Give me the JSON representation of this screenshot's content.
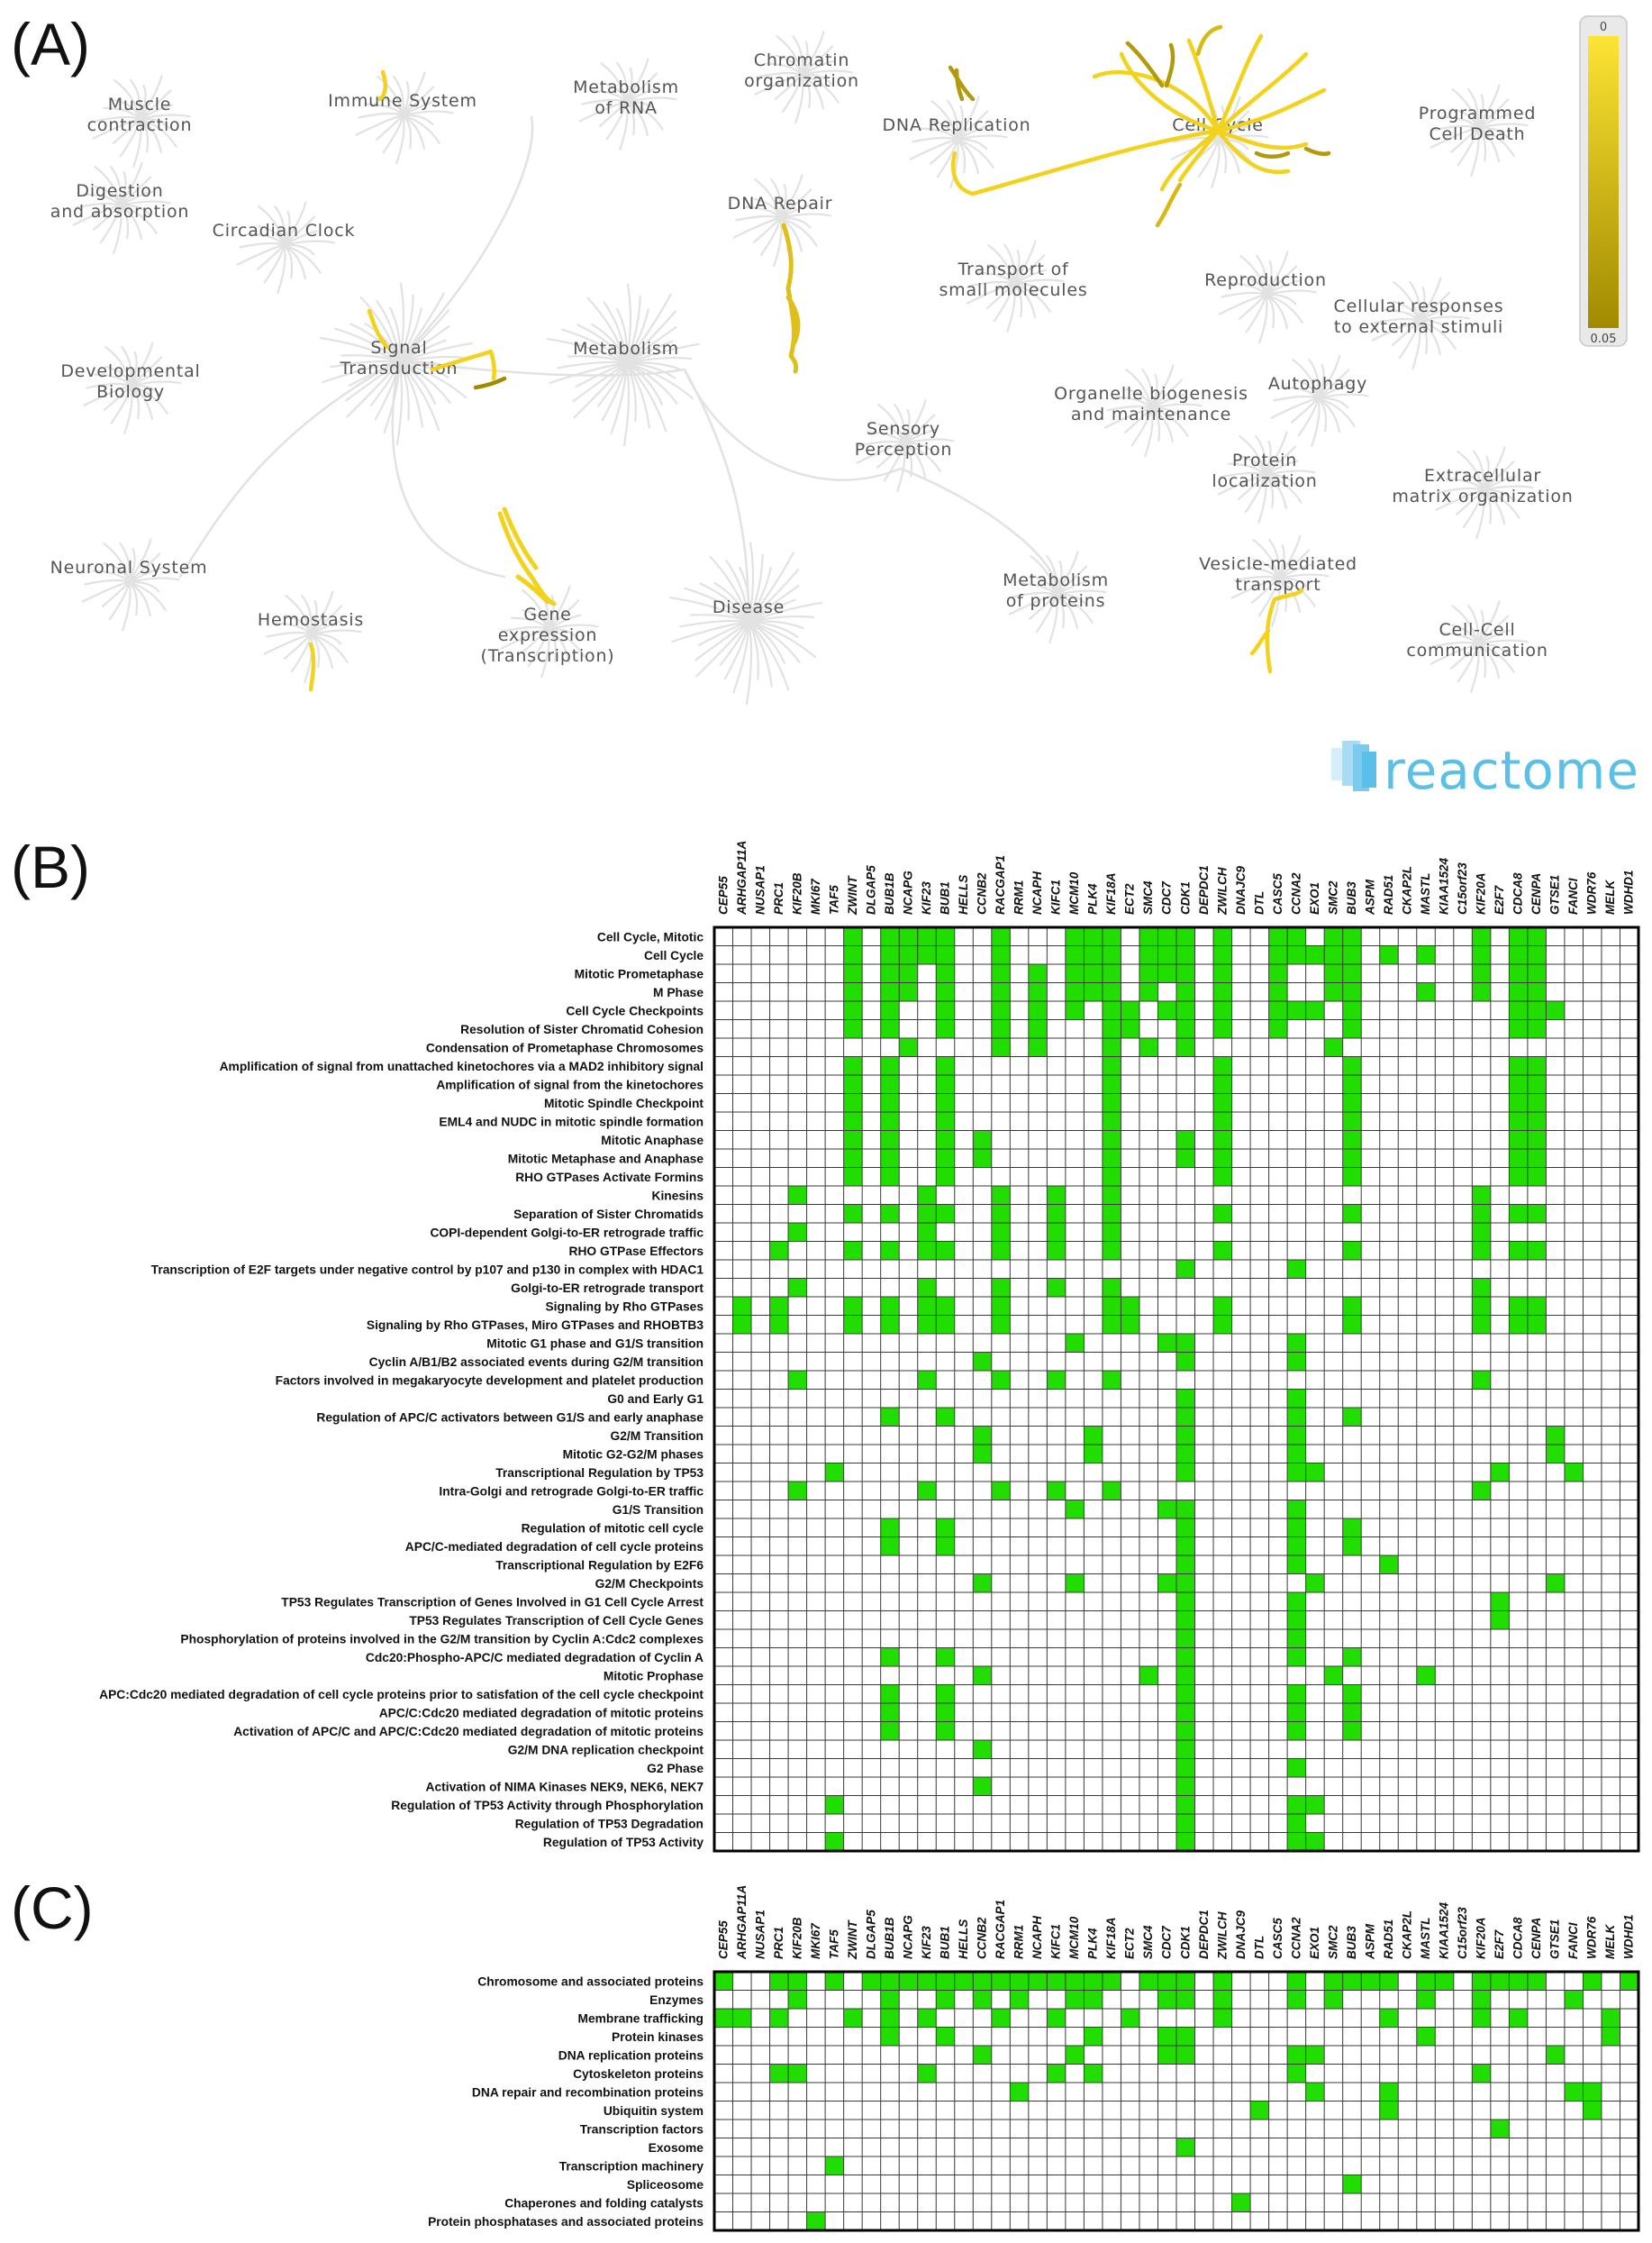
{
  "panels": {
    "a": "(A)",
    "b": "(B)",
    "c": "(C)"
  },
  "reactome_map": {
    "brand": "reactome",
    "legend": {
      "min_label": "0",
      "max_label": "0.05",
      "color_low": "#fde434",
      "color_high": "#a18a00"
    },
    "areas": [
      {
        "name": "muscle-contraction",
        "lines": [
          "Muscle",
          "contraction"
        ]
      },
      {
        "name": "immune-system",
        "lines": [
          "Immune System"
        ]
      },
      {
        "name": "metabolism-of-rna",
        "lines": [
          "Metabolism",
          "of RNA"
        ]
      },
      {
        "name": "chromatin-organization",
        "lines": [
          "Chromatin",
          "organization"
        ]
      },
      {
        "name": "dna-replication",
        "lines": [
          "DNA Replication"
        ]
      },
      {
        "name": "cell-cycle",
        "lines": [
          "Cell Cycle"
        ]
      },
      {
        "name": "programmed-cell-death",
        "lines": [
          "Programmed",
          "Cell Death"
        ]
      },
      {
        "name": "digestion",
        "lines": [
          "Digestion",
          "and absorption"
        ]
      },
      {
        "name": "circadian-clock",
        "lines": [
          "Circadian Clock"
        ]
      },
      {
        "name": "dna-repair",
        "lines": [
          "DNA Repair"
        ]
      },
      {
        "name": "transport-small-molecules",
        "lines": [
          "Transport of",
          "small molecules"
        ]
      },
      {
        "name": "reproduction",
        "lines": [
          "Reproduction"
        ]
      },
      {
        "name": "cellular-responses",
        "lines": [
          "Cellular responses",
          "to external stimuli"
        ]
      },
      {
        "name": "developmental-biology",
        "lines": [
          "Developmental",
          "Biology"
        ]
      },
      {
        "name": "signal-transduction",
        "lines": [
          "Signal",
          "Transduction"
        ]
      },
      {
        "name": "metabolism",
        "lines": [
          "Metabolism"
        ]
      },
      {
        "name": "organelle-biogenesis",
        "lines": [
          "Organelle biogenesis",
          "and maintenance"
        ]
      },
      {
        "name": "autophagy",
        "lines": [
          "Autophagy"
        ]
      },
      {
        "name": "sensory-perception",
        "lines": [
          "Sensory",
          "Perception"
        ]
      },
      {
        "name": "protein-localization",
        "lines": [
          "Protein",
          "localization"
        ]
      },
      {
        "name": "extracellular-matrix",
        "lines": [
          "Extracellular",
          "matrix organization"
        ]
      },
      {
        "name": "neuronal-system",
        "lines": [
          "Neuronal System"
        ]
      },
      {
        "name": "hemostasis",
        "lines": [
          "Hemostasis"
        ]
      },
      {
        "name": "gene-expression",
        "lines": [
          "Gene",
          "expression",
          "(Transcription)"
        ]
      },
      {
        "name": "disease",
        "lines": [
          "Disease"
        ]
      },
      {
        "name": "metabolism-of-proteins",
        "lines": [
          "Metabolism",
          "of proteins"
        ]
      },
      {
        "name": "vesicle-mediated-transport",
        "lines": [
          "Vesicle-mediated",
          "transport"
        ]
      },
      {
        "name": "cell-cell-communication",
        "lines": [
          "Cell-Cell",
          "communication"
        ]
      }
    ]
  },
  "genes": [
    "CEP55",
    "ARHGAP11A",
    "NUSAP1",
    "PRC1",
    "KIF20B",
    "MKI67",
    "TAF5",
    "ZWINT",
    "DLGAP5",
    "BUB1B",
    "NCAPG",
    "KIF23",
    "BUB1",
    "HELLS",
    "CCNB2",
    "RACGAP1",
    "RRM1",
    "NCAPH",
    "KIFC1",
    "MCM10",
    "PLK4",
    "KIF18A",
    "ECT2",
    "SMC4",
    "CDC7",
    "CDK1",
    "DEPDC1",
    "ZWILCH",
    "DNAJC9",
    "DTL",
    "CASC5",
    "CCNA2",
    "EXO1",
    "SMC2",
    "BUB3",
    "ASPM",
    "RAD51",
    "CKAP2L",
    "MASTL",
    "KIAA1524",
    "C15orf23",
    "KIF20A",
    "E2F7",
    "CDCA8",
    "CENPA",
    "GTSE1",
    "FANCI",
    "WDR76",
    "MELK",
    "WDHD1"
  ],
  "pathways": {
    "rows": [
      {
        "label": "Cell Cycle, Mitotic",
        "hits": [
          7,
          9,
          10,
          11,
          12,
          15,
          19,
          20,
          21,
          23,
          24,
          25,
          27,
          30,
          31,
          33,
          34,
          41,
          43,
          44
        ]
      },
      {
        "label": "Cell Cycle",
        "hits": [
          7,
          9,
          10,
          11,
          12,
          15,
          19,
          20,
          21,
          23,
          24,
          25,
          27,
          30,
          31,
          32,
          33,
          34,
          36,
          38,
          41,
          43,
          44
        ]
      },
      {
        "label": "Mitotic Prometaphase",
        "hits": [
          7,
          9,
          10,
          12,
          15,
          17,
          19,
          20,
          21,
          23,
          24,
          25,
          27,
          30,
          33,
          34,
          41,
          43,
          44
        ]
      },
      {
        "label": "M Phase",
        "hits": [
          7,
          9,
          10,
          12,
          15,
          17,
          19,
          20,
          21,
          23,
          25,
          27,
          30,
          33,
          34,
          38,
          41,
          43,
          44
        ]
      },
      {
        "label": "Cell Cycle Checkpoints",
        "hits": [
          7,
          9,
          12,
          15,
          17,
          19,
          21,
          22,
          24,
          25,
          27,
          30,
          31,
          32,
          34,
          43,
          44,
          45
        ]
      },
      {
        "label": "Resolution of Sister Chromatid Cohesion",
        "hits": [
          7,
          9,
          12,
          15,
          17,
          21,
          22,
          25,
          27,
          30,
          34,
          43,
          44
        ]
      },
      {
        "label": "Condensation of Prometaphase Chromosomes",
        "hits": [
          10,
          15,
          17,
          21,
          23,
          25,
          33
        ]
      },
      {
        "label": "Amplification  of signal from unattached  kinetochores via a MAD2  inhibitory signal",
        "hits": [
          7,
          9,
          12,
          21,
          27,
          34,
          43,
          44
        ]
      },
      {
        "label": "Amplification of signal from the kinetochores",
        "hits": [
          7,
          9,
          12,
          21,
          27,
          34,
          43,
          44
        ]
      },
      {
        "label": "Mitotic Spindle Checkpoint",
        "hits": [
          7,
          9,
          12,
          21,
          27,
          34,
          43,
          44
        ]
      },
      {
        "label": "EML4 and NUDC in mitotic spindle formation",
        "hits": [
          7,
          9,
          12,
          21,
          27,
          34,
          43,
          44
        ]
      },
      {
        "label": "Mitotic Anaphase",
        "hits": [
          7,
          9,
          12,
          14,
          21,
          25,
          27,
          34,
          43,
          44
        ]
      },
      {
        "label": "Mitotic Metaphase and Anaphase",
        "hits": [
          7,
          9,
          12,
          14,
          21,
          25,
          27,
          34,
          43,
          44
        ]
      },
      {
        "label": "RHO GTPases Activate Formins",
        "hits": [
          7,
          9,
          12,
          21,
          27,
          34,
          43,
          44
        ]
      },
      {
        "label": "Kinesins",
        "hits": [
          4,
          11,
          15,
          18,
          21,
          41
        ]
      },
      {
        "label": "Separation of Sister Chromatids",
        "hits": [
          7,
          9,
          11,
          12,
          15,
          18,
          21,
          27,
          34,
          41,
          43,
          44
        ]
      },
      {
        "label": "COPI-dependent Golgi-to-ER retrograde traffic",
        "hits": [
          4,
          11,
          15,
          18,
          21,
          41
        ]
      },
      {
        "label": "RHO GTPase Effectors",
        "hits": [
          3,
          7,
          9,
          11,
          12,
          15,
          18,
          21,
          27,
          34,
          41,
          43,
          44
        ]
      },
      {
        "label": "Transcription of E2F targets under negative control by p107 and p130 in complex with HDAC1",
        "hits": [
          25,
          31
        ]
      },
      {
        "label": "Golgi-to-ER retrograde transport",
        "hits": [
          4,
          11,
          15,
          18,
          21,
          41
        ]
      },
      {
        "label": "Signaling by Rho GTPases",
        "hits": [
          1,
          3,
          7,
          9,
          11,
          12,
          15,
          21,
          22,
          27,
          34,
          41,
          43,
          44
        ]
      },
      {
        "label": "Signaling by Rho GTPases, Miro GTPases and RHOBTB3",
        "hits": [
          1,
          3,
          7,
          9,
          11,
          12,
          15,
          21,
          22,
          27,
          34,
          41,
          43,
          44
        ]
      },
      {
        "label": "Mitotic G1 phase and G1/S transition",
        "hits": [
          19,
          24,
          25,
          31
        ]
      },
      {
        "label": "Cyclin A/B1/B2 associated events during G2/M transition",
        "hits": [
          14,
          25,
          31
        ]
      },
      {
        "label": "Factors involved in megakaryocyte development and platelet production",
        "hits": [
          4,
          11,
          15,
          18,
          21,
          41
        ]
      },
      {
        "label": "G0 and Early G1",
        "hits": [
          25,
          31
        ]
      },
      {
        "label": "Regulation of APC/C activators between G1/S and early anaphase",
        "hits": [
          9,
          12,
          25,
          31,
          34
        ]
      },
      {
        "label": "G2/M Transition",
        "hits": [
          14,
          20,
          25,
          31,
          45
        ]
      },
      {
        "label": "Mitotic G2-G2/M phases",
        "hits": [
          14,
          20,
          25,
          31,
          45
        ]
      },
      {
        "label": "Transcriptional Regulation by TP53",
        "hits": [
          6,
          25,
          31,
          32,
          42,
          46
        ]
      },
      {
        "label": "Intra-Golgi and retrograde Golgi-to-ER traffic",
        "hits": [
          4,
          11,
          15,
          18,
          21,
          41
        ]
      },
      {
        "label": "G1/S Transition",
        "hits": [
          19,
          24,
          25,
          31
        ]
      },
      {
        "label": "Regulation of mitotic cell cycle",
        "hits": [
          9,
          12,
          25,
          31,
          34
        ]
      },
      {
        "label": "APC/C-mediated degradation of cell cycle proteins",
        "hits": [
          9,
          12,
          25,
          31,
          34
        ]
      },
      {
        "label": "Transcriptional Regulation by E2F6",
        "hits": [
          25,
          31,
          36
        ]
      },
      {
        "label": "G2/M Checkpoints",
        "hits": [
          14,
          19,
          24,
          25,
          32,
          45
        ]
      },
      {
        "label": "TP53 Regulates Transcription of Genes Involved in G1 Cell Cycle Arrest",
        "hits": [
          25,
          31,
          42
        ]
      },
      {
        "label": "TP53 Regulates Transcription of Cell Cycle Genes",
        "hits": [
          25,
          31,
          42
        ]
      },
      {
        "label": "Phosphorylation of proteins involved in the G2/M transition by Cyclin A:Cdc2 complexes",
        "hits": [
          25,
          31
        ]
      },
      {
        "label": "Cdc20:Phospho-APC/C mediated degradation of Cyclin A",
        "hits": [
          9,
          12,
          25,
          31,
          34
        ]
      },
      {
        "label": "Mitotic Prophase",
        "hits": [
          14,
          23,
          25,
          33,
          38
        ]
      },
      {
        "label": "APC:Cdc20 mediated degradation of cell cycle proteins prior to satisfation of the cell cycle checkpoint",
        "hits": [
          9,
          12,
          25,
          31,
          34
        ]
      },
      {
        "label": "APC/C:Cdc20 mediated degradation of mitotic proteins",
        "hits": [
          9,
          12,
          25,
          31,
          34
        ]
      },
      {
        "label": "Activation of APC/C and APC/C:Cdc20 mediated degradation of mitotic proteins",
        "hits": [
          9,
          12,
          25,
          31,
          34
        ]
      },
      {
        "label": "G2/M DNA replication checkpoint",
        "hits": [
          14,
          25
        ]
      },
      {
        "label": "G2 Phase",
        "hits": [
          25,
          31
        ]
      },
      {
        "label": "Activation of NIMA Kinases NEK9, NEK6, NEK7",
        "hits": [
          14,
          25
        ]
      },
      {
        "label": "Regulation of TP53 Activity through Phosphorylation",
        "hits": [
          6,
          25,
          31,
          32
        ]
      },
      {
        "label": "Regulation of TP53 Degradation",
        "hits": [
          25,
          31
        ]
      },
      {
        "label": "Regulation of TP53 Activity",
        "hits": [
          6,
          25,
          31,
          32
        ]
      }
    ]
  },
  "protein_classes": {
    "rows": [
      {
        "label": "Chromosome and associated proteins",
        "hits": [
          0,
          3,
          4,
          6,
          8,
          9,
          10,
          11,
          12,
          13,
          14,
          15,
          16,
          17,
          18,
          19,
          20,
          21,
          23,
          24,
          25,
          27,
          31,
          33,
          34,
          35,
          36,
          38,
          39,
          41,
          42,
          43,
          44,
          47,
          49
        ]
      },
      {
        "label": "Enzymes",
        "hits": [
          4,
          9,
          12,
          14,
          16,
          19,
          20,
          24,
          25,
          27,
          31,
          33,
          38,
          41,
          46
        ]
      },
      {
        "label": "Membrane trafficking",
        "hits": [
          0,
          1,
          3,
          7,
          9,
          11,
          15,
          18,
          22,
          27,
          36,
          41,
          43,
          48
        ]
      },
      {
        "label": "Protein kinases",
        "hits": [
          9,
          12,
          20,
          24,
          25,
          38,
          48
        ]
      },
      {
        "label": "DNA replication proteins",
        "hits": [
          14,
          19,
          24,
          25,
          31,
          32,
          45
        ]
      },
      {
        "label": "Cytoskeleton proteins",
        "hits": [
          3,
          4,
          11,
          18,
          20,
          31,
          41
        ]
      },
      {
        "label": "DNA repair and recombination proteins",
        "hits": [
          16,
          32,
          36,
          46,
          47
        ]
      },
      {
        "label": "Ubiquitin system",
        "hits": [
          29,
          36,
          47
        ]
      },
      {
        "label": "Transcription factors",
        "hits": [
          42
        ]
      },
      {
        "label": "Exosome",
        "hits": [
          25
        ]
      },
      {
        "label": "Transcription machinery",
        "hits": [
          6
        ]
      },
      {
        "label": "Spliceosome",
        "hits": [
          34
        ]
      },
      {
        "label": "Chaperones and folding catalysts",
        "hits": [
          28
        ]
      },
      {
        "label": "Protein phosphatases and associated proteins",
        "hits": [
          5
        ]
      }
    ]
  },
  "colors": {
    "hit": "#22dd00",
    "grid": "#3a3a3a",
    "map_ghost": "#e2e2e2"
  }
}
